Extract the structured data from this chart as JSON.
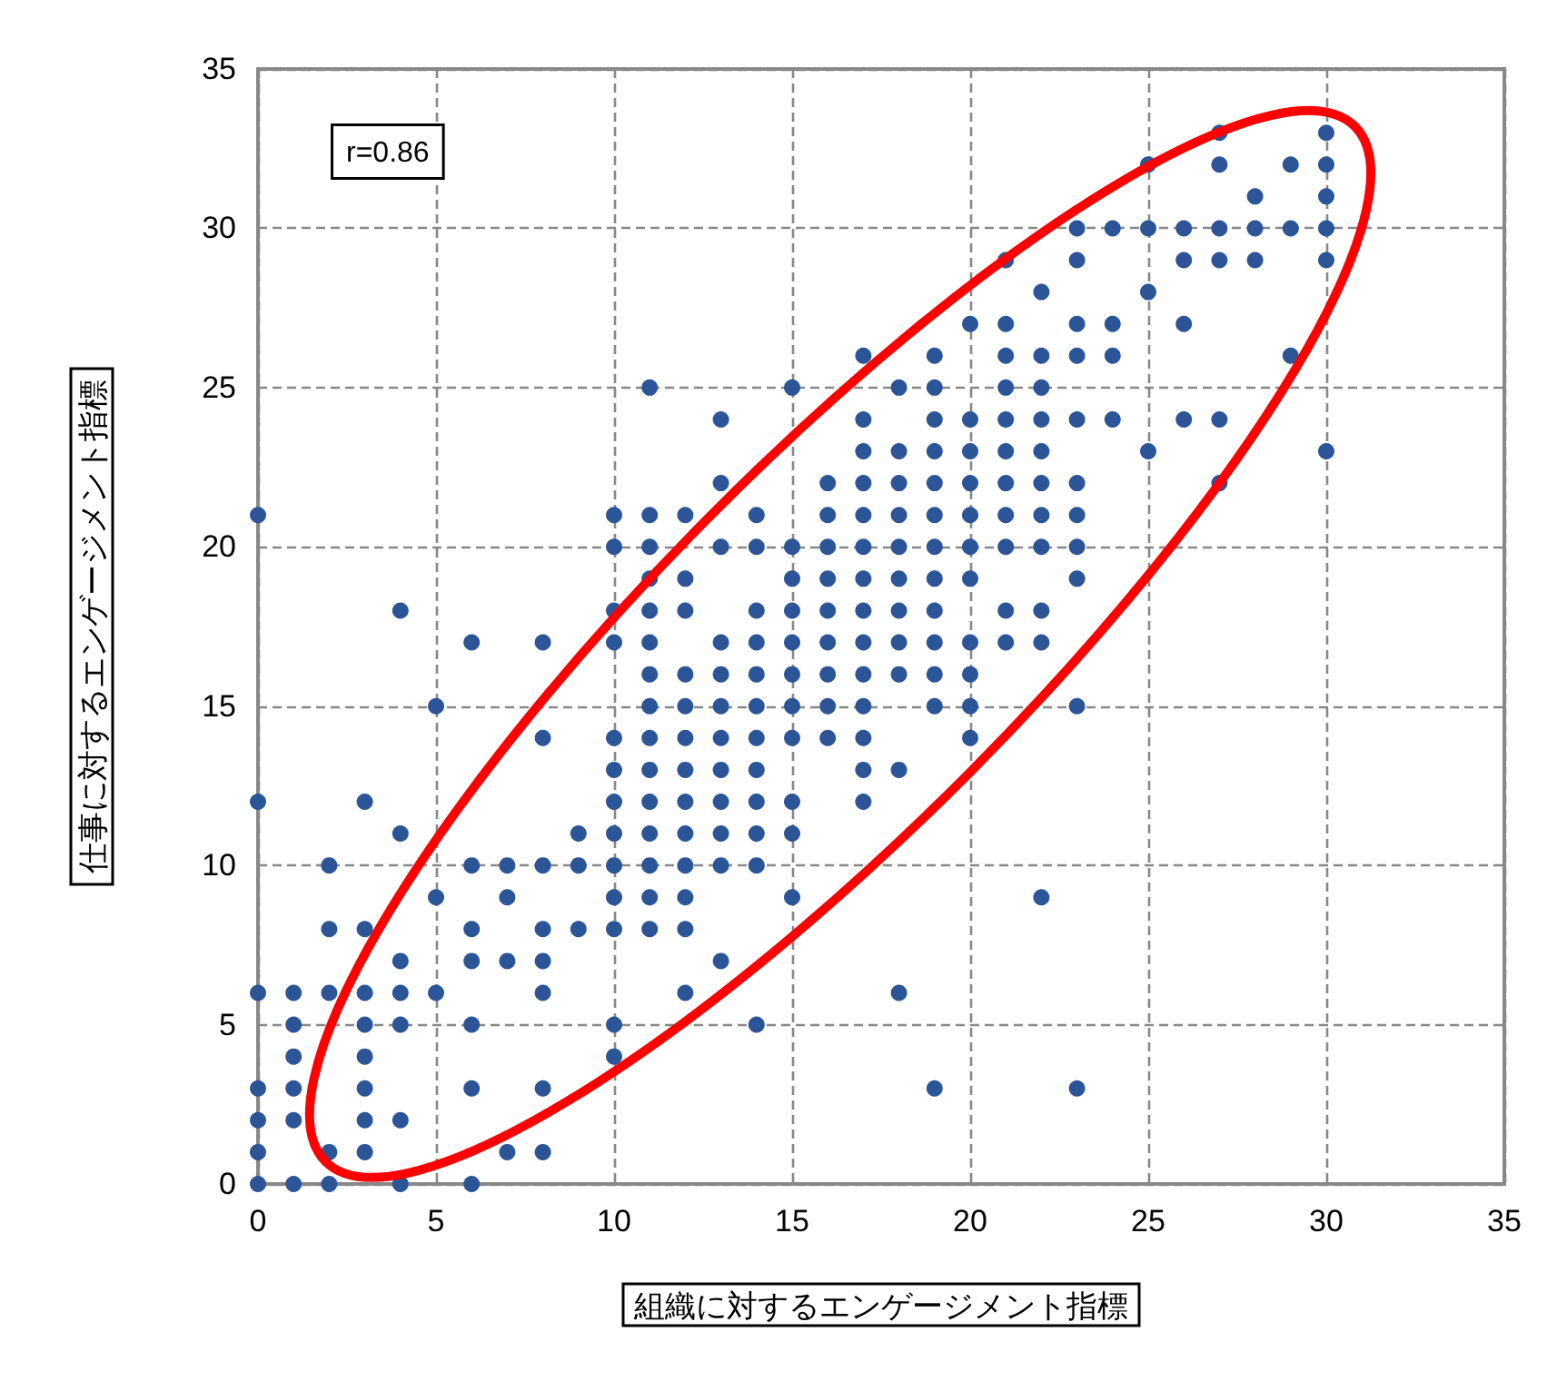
{
  "chart_data": {
    "type": "scatter",
    "xlabel": "組織に対するエンゲージメント指標",
    "ylabel": "仕事に対するエンゲージメント指標",
    "annotations": [
      "r=0.86"
    ],
    "xlim": [
      0,
      35
    ],
    "ylim": [
      0,
      35
    ],
    "xticks": [
      0,
      5,
      10,
      15,
      20,
      25,
      30,
      35
    ],
    "yticks": [
      0,
      5,
      10,
      15,
      20,
      25,
      30,
      35
    ],
    "grid": true,
    "marker": "circle",
    "series": [
      {
        "color": "#2b5597",
        "x": [
          27,
          30,
          25,
          27,
          29,
          30,
          28,
          30,
          23,
          24,
          25,
          26,
          27,
          28,
          29,
          30,
          21,
          23,
          26,
          27,
          28,
          30,
          22,
          25,
          20,
          21,
          23,
          24,
          26,
          17,
          19,
          21,
          22,
          23,
          24,
          29,
          11,
          15,
          18,
          19,
          21,
          22,
          13,
          17,
          19,
          20,
          21,
          22,
          23,
          24,
          26,
          27,
          17,
          18,
          19,
          20,
          21,
          22,
          25,
          30,
          13,
          16,
          17,
          18,
          19,
          20,
          21,
          22,
          23,
          27,
          0,
          10,
          11,
          12,
          14,
          16,
          17,
          18,
          19,
          20,
          21,
          22,
          23,
          10,
          11,
          13,
          14,
          15,
          16,
          17,
          18,
          19,
          20,
          21,
          22,
          23,
          11,
          12,
          15,
          16,
          17,
          18,
          19,
          20,
          23,
          4,
          10,
          11,
          12,
          14,
          15,
          16,
          17,
          18,
          19,
          21,
          22,
          6,
          8,
          10,
          11,
          13,
          14,
          15,
          16,
          17,
          18,
          19,
          20,
          21,
          22,
          11,
          12,
          13,
          14,
          15,
          16,
          17,
          18,
          19,
          20,
          5,
          11,
          12,
          13,
          14,
          15,
          16,
          17,
          19,
          20,
          23,
          8,
          10,
          11,
          12,
          13,
          14,
          15,
          16,
          17,
          20,
          10,
          11,
          12,
          13,
          14,
          17,
          18,
          0,
          3,
          10,
          11,
          12,
          13,
          14,
          15,
          17,
          4,
          9,
          10,
          11,
          12,
          13,
          14,
          15,
          2,
          6,
          7,
          8,
          9,
          10,
          11,
          12,
          13,
          14,
          5,
          7,
          10,
          11,
          12,
          15,
          22,
          2,
          3,
          6,
          8,
          9,
          10,
          11,
          12,
          4,
          6,
          7,
          8,
          13,
          0,
          1,
          2,
          3,
          4,
          5,
          8,
          12,
          18,
          1,
          3,
          4,
          6,
          10,
          14,
          1,
          3,
          10,
          0,
          1,
          3,
          6,
          8,
          19,
          23,
          0,
          1,
          3,
          4,
          0,
          2,
          3,
          7,
          8,
          0,
          1,
          2,
          4,
          6
        ],
        "values": [
          33,
          33,
          32,
          32,
          32,
          32,
          31,
          31,
          30,
          30,
          30,
          30,
          30,
          30,
          30,
          30,
          29,
          29,
          29,
          29,
          29,
          29,
          28,
          28,
          27,
          27,
          27,
          27,
          27,
          26,
          26,
          26,
          26,
          26,
          26,
          26,
          25,
          25,
          25,
          25,
          25,
          25,
          24,
          24,
          24,
          24,
          24,
          24,
          24,
          24,
          24,
          24,
          23,
          23,
          23,
          23,
          23,
          23,
          23,
          23,
          22,
          22,
          22,
          22,
          22,
          22,
          22,
          22,
          22,
          22,
          21,
          21,
          21,
          21,
          21,
          21,
          21,
          21,
          21,
          21,
          21,
          21,
          21,
          20,
          20,
          20,
          20,
          20,
          20,
          20,
          20,
          20,
          20,
          20,
          20,
          20,
          19,
          19,
          19,
          19,
          19,
          19,
          19,
          19,
          19,
          18,
          18,
          18,
          18,
          18,
          18,
          18,
          18,
          18,
          18,
          18,
          18,
          17,
          17,
          17,
          17,
          17,
          17,
          17,
          17,
          17,
          17,
          17,
          17,
          17,
          17,
          16,
          16,
          16,
          16,
          16,
          16,
          16,
          16,
          16,
          16,
          15,
          15,
          15,
          15,
          15,
          15,
          15,
          15,
          15,
          15,
          15,
          14,
          14,
          14,
          14,
          14,
          14,
          14,
          14,
          14,
          14,
          13,
          13,
          13,
          13,
          13,
          13,
          13,
          12,
          12,
          12,
          12,
          12,
          12,
          12,
          12,
          12,
          11,
          11,
          11,
          11,
          11,
          11,
          11,
          11,
          10,
          10,
          10,
          10,
          10,
          10,
          10,
          10,
          10,
          10,
          9,
          9,
          9,
          9,
          9,
          9,
          9,
          8,
          8,
          8,
          8,
          8,
          8,
          8,
          8,
          7,
          7,
          7,
          7,
          7,
          6,
          6,
          6,
          6,
          6,
          6,
          6,
          6,
          6,
          5,
          5,
          5,
          5,
          5,
          5,
          4,
          4,
          4,
          3,
          3,
          3,
          3,
          3,
          3,
          3,
          2,
          2,
          2,
          2,
          1,
          1,
          1,
          1,
          1,
          0,
          0,
          0,
          0,
          0
        ]
      }
    ]
  }
}
